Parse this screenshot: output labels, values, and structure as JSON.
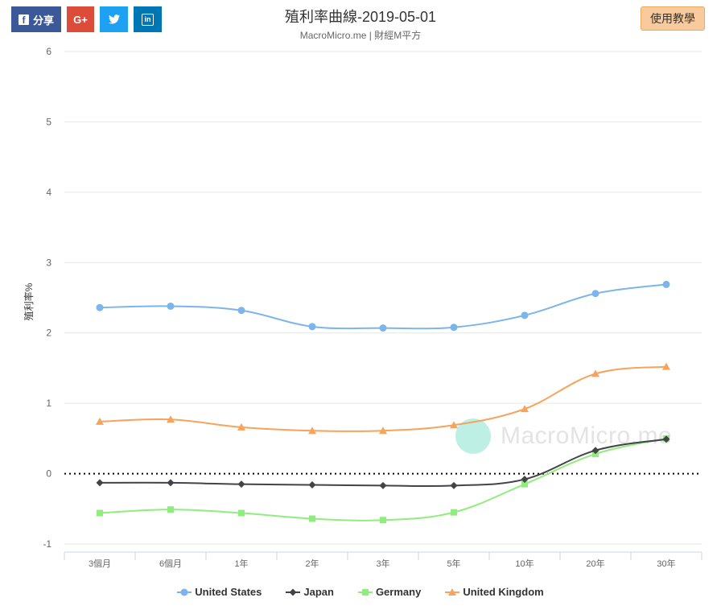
{
  "header": {
    "title": "殖利率曲線-2019-05-01",
    "subtitle": "MacroMicro.me | 財經M平方",
    "share_label": "分享",
    "gplus_label": "G+",
    "tutorial_label": "使用教學"
  },
  "watermark": {
    "text": "MacroMicro.me"
  },
  "colors": {
    "united_states": "#7cb5ec",
    "japan": "#434348",
    "germany": "#90ed7d",
    "united_kingdom": "#f7a35c"
  },
  "chart_data": {
    "type": "line",
    "categories": [
      "3個月",
      "6個月",
      "1年",
      "2年",
      "3年",
      "5年",
      "10年",
      "20年",
      "30年"
    ],
    "ylabel": "殖利率%",
    "ylim": [
      -1,
      6
    ],
    "yticks": [
      "6",
      "5",
      "4",
      "3",
      "2",
      "1",
      "0",
      "-1"
    ],
    "grid": true,
    "zero_line": "dotted",
    "legend_position": "bottom",
    "series": [
      {
        "name": "United States",
        "marker": "circle",
        "values": [
          2.36,
          2.38,
          2.32,
          2.09,
          2.07,
          2.08,
          2.25,
          2.56,
          2.69
        ]
      },
      {
        "name": "Japan",
        "marker": "diamond",
        "values": [
          -0.13,
          -0.13,
          -0.15,
          -0.16,
          -0.17,
          -0.17,
          -0.08,
          0.33,
          0.49
        ]
      },
      {
        "name": "Germany",
        "marker": "square",
        "values": [
          -0.56,
          -0.51,
          -0.56,
          -0.64,
          -0.66,
          -0.55,
          -0.15,
          0.28,
          0.5
        ]
      },
      {
        "name": "United Kingdom",
        "marker": "triangle",
        "values": [
          0.74,
          0.77,
          0.66,
          0.61,
          0.61,
          0.69,
          0.92,
          1.42,
          1.52
        ]
      }
    ]
  }
}
